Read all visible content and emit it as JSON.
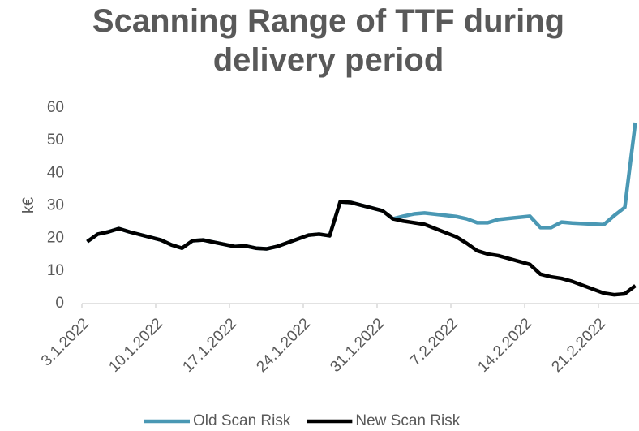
{
  "chart_data": {
    "type": "line",
    "title": "Scanning Range of TTF during delivery period",
    "ylabel": "k€",
    "x": [
      "3.1.2022",
      "4.1.2022",
      "5.1.2022",
      "6.1.2022",
      "7.1.2022",
      "10.1.2022",
      "11.1.2022",
      "12.1.2022",
      "13.1.2022",
      "14.1.2022",
      "17.1.2022",
      "18.1.2022",
      "19.1.2022",
      "20.1.2022",
      "21.1.2022",
      "24.1.2022",
      "25.1.2022",
      "26.1.2022",
      "27.1.2022",
      "28.1.2022",
      "31.1.2022",
      "1.2.2022",
      "2.2.2022",
      "3.2.2022",
      "4.2.2022",
      "7.2.2022",
      "8.2.2022",
      "9.2.2022",
      "10.2.2022",
      "11.2.2022",
      "14.2.2022",
      "15.2.2022",
      "16.2.2022",
      "17.2.2022",
      "18.2.2022",
      "21.2.2022",
      "22.2.2022",
      "23.2.2022",
      "24.2.2022"
    ],
    "series": [
      {
        "name": "Old Scan Risk",
        "color": "#4a98b4",
        "values": [
          19,
          21.3,
          22,
          23,
          22,
          19.5,
          18,
          17,
          19.3,
          19.5,
          17.5,
          17.7,
          17,
          16.8,
          17.5,
          21,
          21.3,
          20.8,
          31.2,
          31,
          28.5,
          26,
          26.8,
          27.5,
          27.8,
          26.7,
          26,
          24.8,
          24.8,
          25.8,
          26.8,
          23.3,
          23.3,
          25,
          24.7,
          24.2,
          27,
          29.5,
          55.5
        ]
      },
      {
        "name": "New Scan Risk",
        "color": "#000000",
        "values": [
          19,
          21.3,
          22,
          23,
          22,
          19.5,
          18,
          17,
          19.3,
          19.5,
          17.5,
          17.7,
          17,
          16.8,
          17.5,
          21,
          21.3,
          20.8,
          31.2,
          31,
          28.5,
          26,
          25.3,
          24.8,
          24.3,
          20.5,
          18.5,
          16.2,
          15.2,
          14.7,
          12,
          9,
          8.2,
          7.7,
          6.8,
          3.2,
          2.7,
          3,
          5.5
        ]
      }
    ],
    "xlim": [
      "3.1.2022",
      "24.2.2022"
    ],
    "xticks": [
      "3.1.2022",
      "10.1.2022",
      "17.1.2022",
      "24.1.2022",
      "31.1.2022",
      "7.2.2022",
      "14.2.2022",
      "21.2.2022"
    ],
    "ylim": [
      0,
      60
    ],
    "yticks": [
      0,
      10,
      20,
      30,
      40,
      50,
      60
    ],
    "legend": "bottom"
  }
}
